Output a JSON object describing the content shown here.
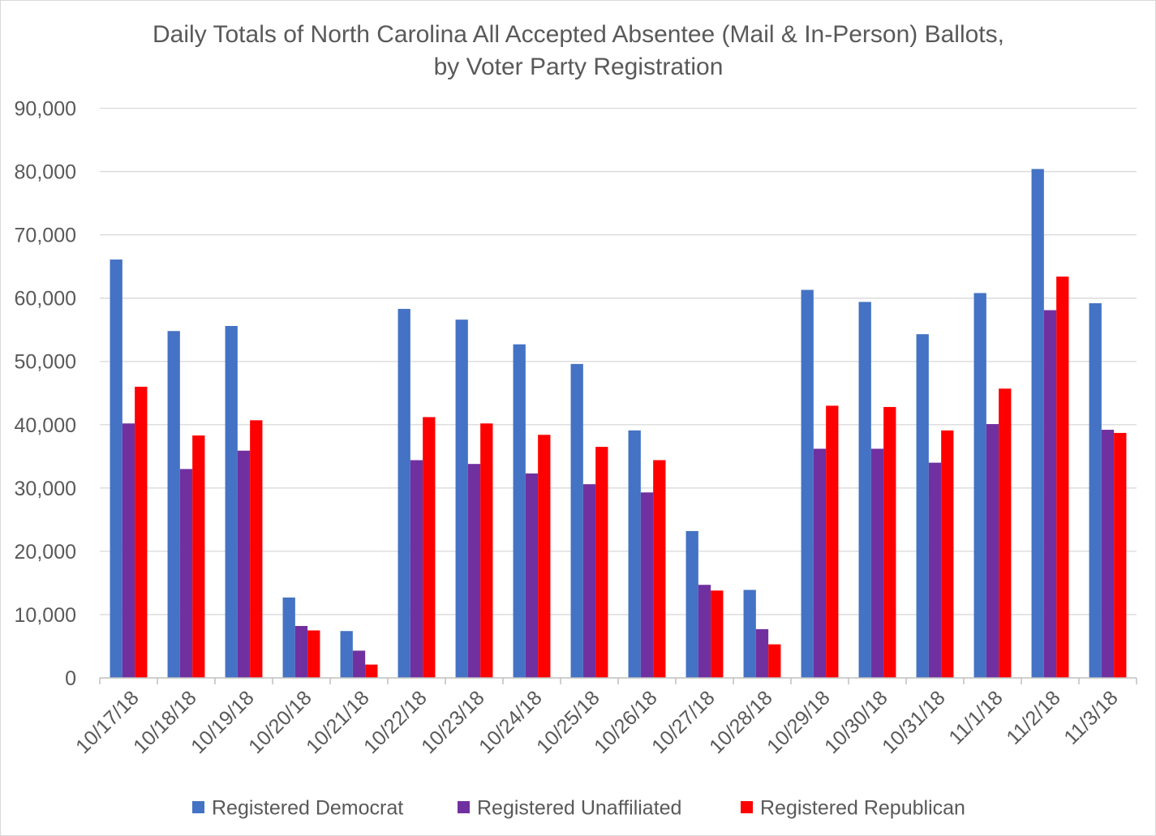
{
  "chart_data": {
    "type": "bar",
    "title": "Daily Totals of North Carolina All Accepted Absentee (Mail & In-Person) Ballots,",
    "subtitle": "by Voter Party Registration",
    "xlabel": "",
    "ylabel": "",
    "ylim": [
      0,
      90000
    ],
    "y_ticks": [
      {
        "value": 0,
        "label": "0"
      },
      {
        "value": 10000,
        "label": "10,000"
      },
      {
        "value": 20000,
        "label": "20,000"
      },
      {
        "value": 30000,
        "label": "30,000"
      },
      {
        "value": 40000,
        "label": "40,000"
      },
      {
        "value": 50000,
        "label": "50,000"
      },
      {
        "value": 60000,
        "label": "60,000"
      },
      {
        "value": 70000,
        "label": "70,000"
      },
      {
        "value": 80000,
        "label": "80,000"
      },
      {
        "value": 90000,
        "label": "90,000"
      }
    ],
    "grid": true,
    "legend_position": "bottom",
    "categories": [
      "10/17/18",
      "10/18/18",
      "10/19/18",
      "10/20/18",
      "10/21/18",
      "10/22/18",
      "10/23/18",
      "10/24/18",
      "10/25/18",
      "10/26/18",
      "10/27/18",
      "10/28/18",
      "10/29/18",
      "10/30/18",
      "10/31/18",
      "11/1/18",
      "11/2/18",
      "11/3/18"
    ],
    "series": [
      {
        "name": "Registered Democrat",
        "color": "#4472c4",
        "values": [
          66100,
          54800,
          55600,
          12700,
          7400,
          58300,
          56600,
          52700,
          49600,
          39100,
          23200,
          13900,
          61300,
          59400,
          54300,
          60800,
          80400,
          59200
        ]
      },
      {
        "name": "Registered Unaffiliated",
        "color": "#7030a0",
        "values": [
          40200,
          33000,
          35900,
          8200,
          4300,
          34400,
          33800,
          32300,
          30600,
          29300,
          14700,
          7700,
          36200,
          36200,
          34000,
          40100,
          58100,
          39200
        ]
      },
      {
        "name": "Registered Republican",
        "color": "#ff0000",
        "values": [
          46000,
          38300,
          40700,
          7500,
          2100,
          41200,
          40200,
          38400,
          36500,
          34400,
          13800,
          5300,
          43000,
          42800,
          39100,
          45700,
          63400,
          38700
        ]
      }
    ]
  }
}
